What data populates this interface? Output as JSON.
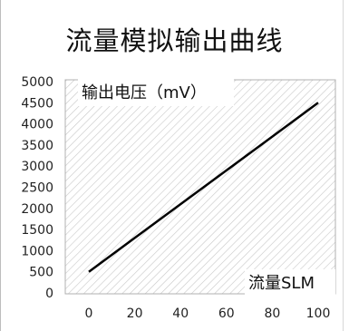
{
  "chart_data": {
    "type": "line",
    "title": "流量模拟输出曲线",
    "xlabel": "流量SLM",
    "ylabel": "输出电压（mV）",
    "x": [
      0,
      20,
      40,
      60,
      80,
      100
    ],
    "xlim": [
      0,
      100
    ],
    "ylim": [
      0,
      5000
    ],
    "x_ticks": [
      "0",
      "20",
      "40",
      "60",
      "80",
      "100"
    ],
    "y_ticks": [
      "0",
      "500",
      "1000",
      "1500",
      "2000",
      "2500",
      "3000",
      "3500",
      "4000",
      "4500",
      "5000"
    ],
    "series": [
      {
        "values": [
          500,
          1300,
          2100,
          2900,
          3700,
          4500
        ]
      }
    ],
    "grid": "hatched background",
    "colors": {
      "line": "#000000",
      "hatch": "#c8c8c8",
      "plot_border": "#b0b0b0"
    }
  }
}
